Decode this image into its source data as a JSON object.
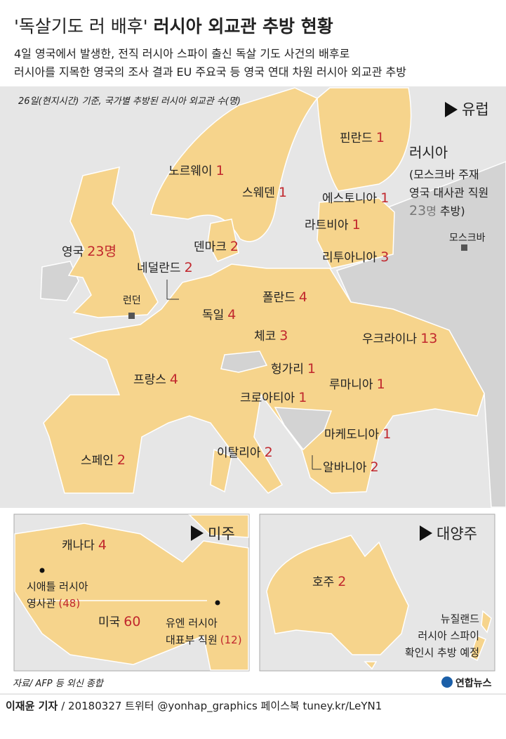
{
  "header": {
    "title_quote": "'독살기도 러 배후'",
    "title": "러시아 외교관 추방 현황",
    "subtitle": [
      "4일 영국에서 발생한, 전직 러시아 스파이 출신 독살 기도 사건의 배후로",
      "러시아를 지목한 영국의 조사 결과 EU 주요국 등 영국 연대 차원 러시아 외교관 추방"
    ]
  },
  "europe": {
    "note": "26일(현지시간) 기준, 국가별 추방된 러시아 외교관 수(명)",
    "label": "유럽",
    "countries": [
      {
        "name": "핀란드",
        "count": 1
      },
      {
        "name": "노르웨이",
        "count": 1
      },
      {
        "name": "스웨덴",
        "count": 1
      },
      {
        "name": "에스토니아",
        "count": 1
      },
      {
        "name": "라트비아",
        "count": 1
      },
      {
        "name": "덴마크",
        "count": 2
      },
      {
        "name": "리투아니아",
        "count": 3
      },
      {
        "name": "영국",
        "count": 23,
        "unit": "명"
      },
      {
        "name": "네덜란드",
        "count": 2
      },
      {
        "name": "폴란드",
        "count": 4
      },
      {
        "name": "독일",
        "count": 4
      },
      {
        "name": "체코",
        "count": 3
      },
      {
        "name": "우크라이나",
        "count": 13
      },
      {
        "name": "헝가리",
        "count": 1
      },
      {
        "name": "프랑스",
        "count": 4
      },
      {
        "name": "루마니아",
        "count": 1
      },
      {
        "name": "크로아티아",
        "count": 1
      },
      {
        "name": "마케도니아",
        "count": 1
      },
      {
        "name": "스페인",
        "count": 2
      },
      {
        "name": "이탈리아",
        "count": 2
      },
      {
        "name": "알바니아",
        "count": 2
      }
    ],
    "russia": {
      "name": "러시아",
      "lines": [
        "(모스크바 주재",
        "영국 대사관 직원"
      ],
      "count": 23,
      "unit": "명",
      "tail": "추방)"
    },
    "cities": [
      "모스크바",
      "런던"
    ]
  },
  "americas": {
    "label": "미주",
    "countries": [
      {
        "name": "캐나다",
        "count": 4
      },
      {
        "name": "미국",
        "count": 60
      }
    ],
    "notes": [
      {
        "lines": [
          "시애틀 러시아",
          "영사관"
        ],
        "count": "(48)"
      },
      {
        "lines": [
          "유엔 러시아",
          "대표부 직원"
        ],
        "count": "(12)"
      }
    ]
  },
  "oceania": {
    "label": "대양주",
    "countries": [
      {
        "name": "호주",
        "count": 2
      }
    ],
    "note": [
      "뉴질랜드",
      "러시아 스파이",
      "확인시 추방 예정"
    ]
  },
  "footer": {
    "source": "자료/ AFP 등 외신 종합",
    "logo": "연합뉴스",
    "author": "이재윤 기자",
    "credit": "/ 20180327  트위터 @yonhap_graphics  페이스북 tuney.kr/LeYN1"
  }
}
